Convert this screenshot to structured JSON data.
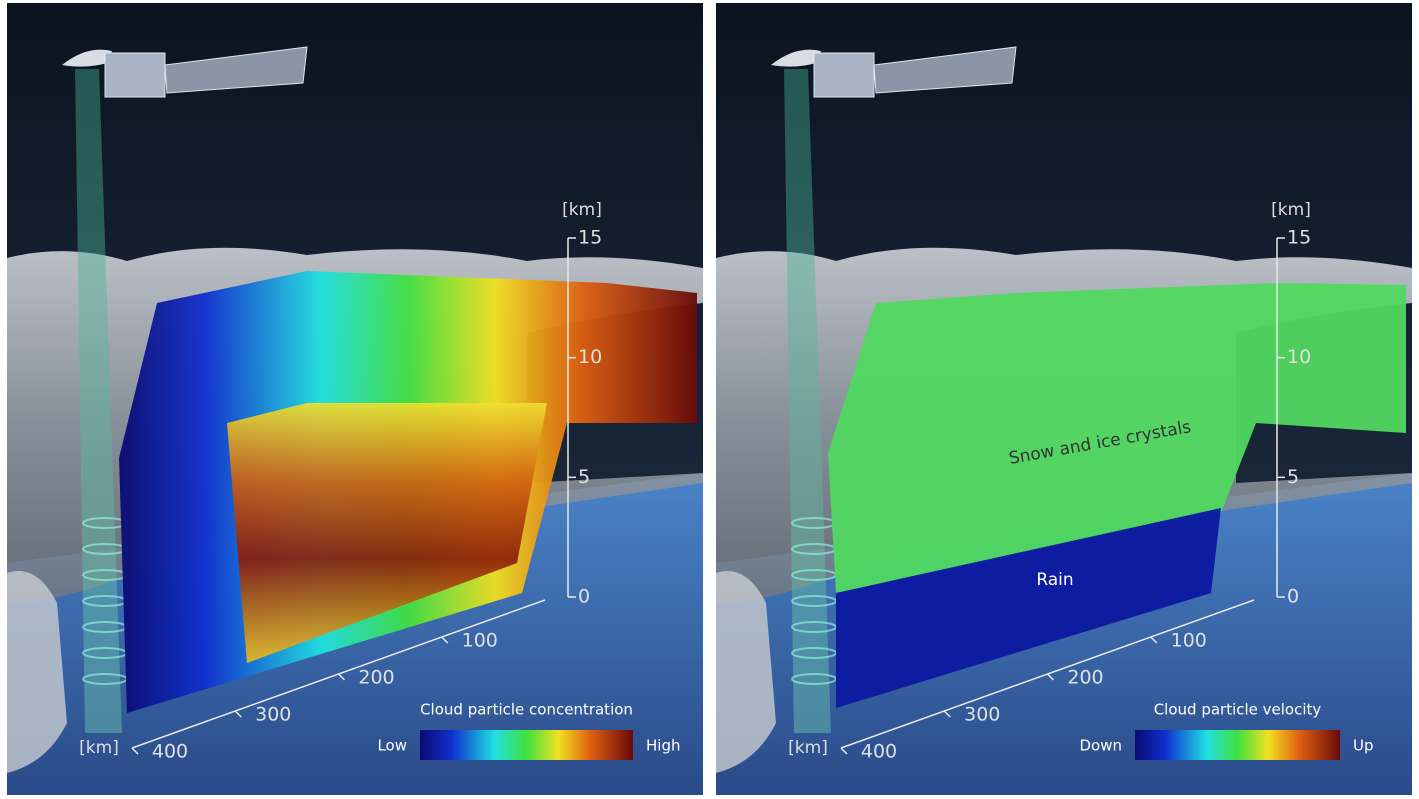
{
  "panels": [
    {
      "vertical_axis": {
        "unit": "[km]",
        "ticks": [
          15,
          10,
          5,
          0
        ]
      },
      "horizontal_axis": {
        "unit": "[km]",
        "ticks": [
          100,
          200,
          300,
          400
        ]
      },
      "colorbar": {
        "title": "Cloud particle concentration",
        "low": "Low",
        "high": "High"
      }
    },
    {
      "vertical_axis": {
        "unit": "[km]",
        "ticks": [
          15,
          10,
          5,
          0
        ]
      },
      "horizontal_axis": {
        "unit": "[km]",
        "ticks": [
          100,
          200,
          300,
          400
        ]
      },
      "colorbar": {
        "title": "Cloud particle velocity",
        "low": "Down",
        "high": "Up"
      },
      "annotations": [
        "Snow and ice crystals",
        "Rain"
      ]
    }
  ]
}
